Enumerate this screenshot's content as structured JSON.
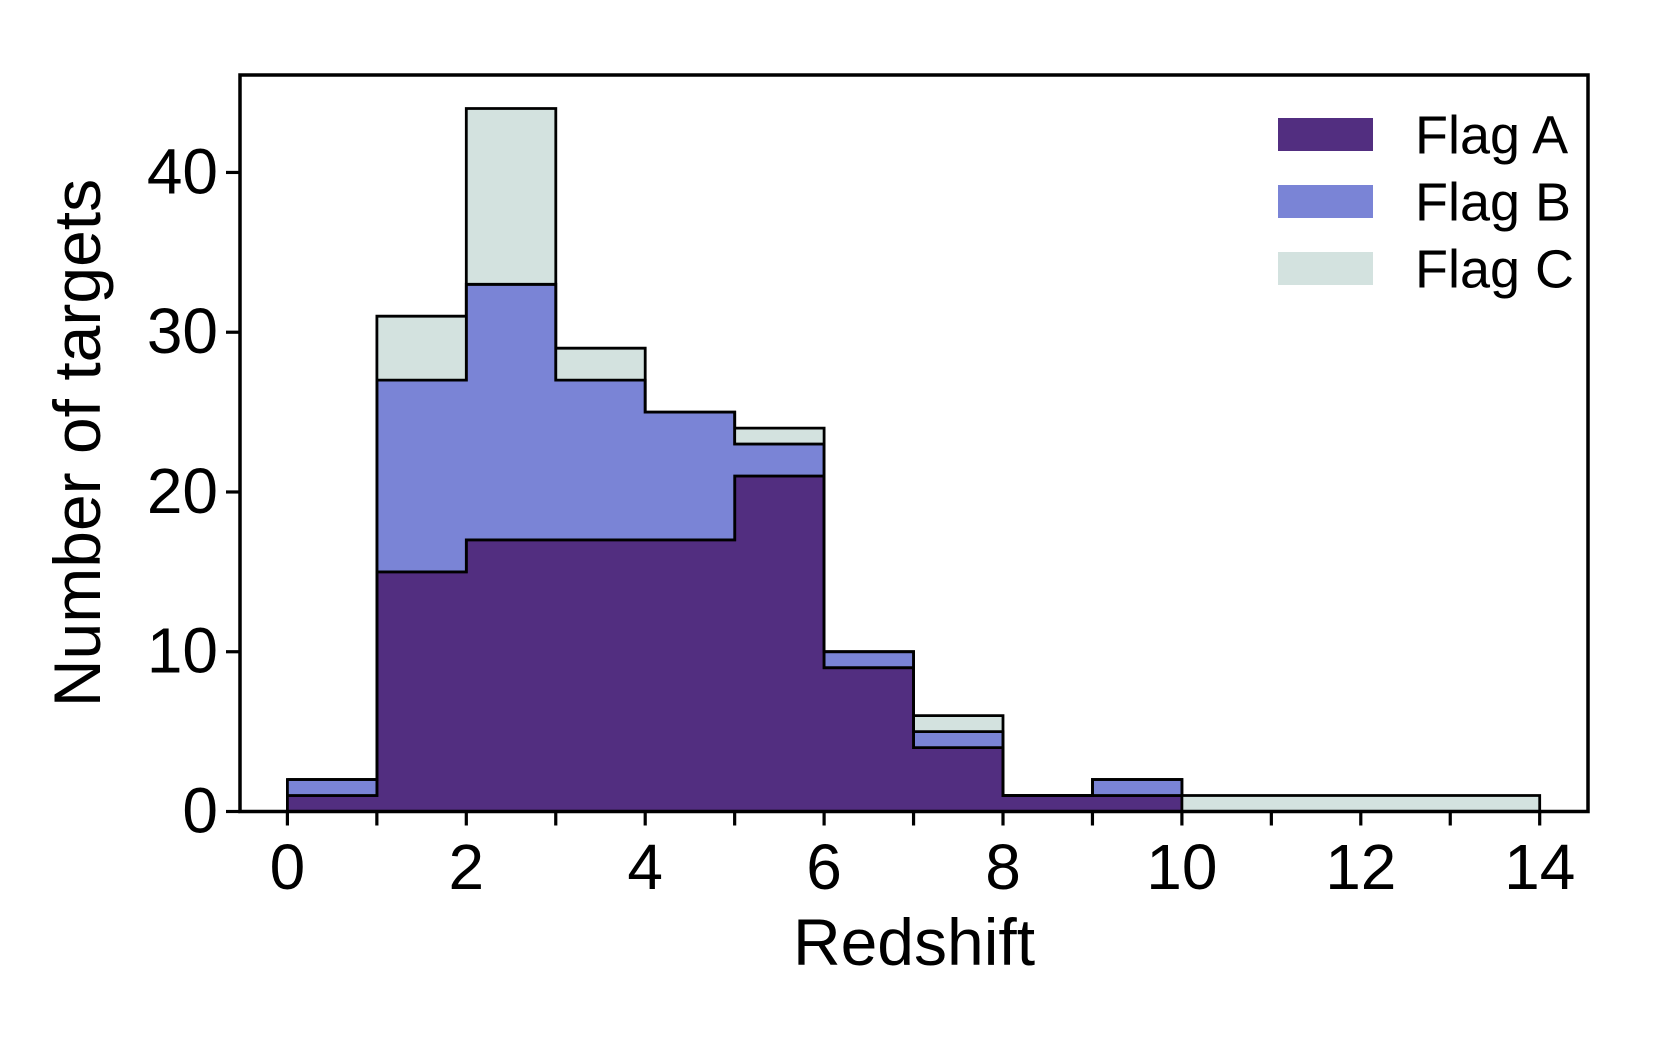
{
  "chart_data": {
    "type": "histogram-stacked-bar",
    "title": "",
    "xlabel": "Redshift",
    "ylabel": "Number of targets",
    "bin_edges": [
      0,
      1,
      2,
      3,
      4,
      5,
      6,
      7,
      8,
      9,
      10,
      14
    ],
    "series": [
      {
        "name": "Flag A",
        "color": "#522e80",
        "values": [
          1,
          15,
          17,
          17,
          17,
          21,
          9,
          4,
          1,
          1,
          0
        ]
      },
      {
        "name": "Flag B",
        "color": "#7a84d6",
        "values": [
          1,
          12,
          16,
          10,
          8,
          2,
          1,
          1,
          0,
          1,
          0
        ]
      },
      {
        "name": "Flag C",
        "color": "#d3e2df",
        "values": [
          0,
          4,
          11,
          2,
          0,
          1,
          0,
          1,
          0,
          0,
          1
        ]
      }
    ],
    "stacked_totals": [
      2,
      31,
      44,
      29,
      25,
      24,
      10,
      6,
      1,
      2,
      1
    ],
    "xlim": [
      -0.53,
      14.54
    ],
    "ylim": [
      0,
      46.1
    ],
    "x_major_ticks": [
      0,
      2,
      4,
      6,
      8,
      10,
      12,
      14
    ],
    "x_minor_ticks": [
      1,
      3,
      5,
      7,
      9,
      11,
      13
    ],
    "y_ticks": [
      0,
      10,
      20,
      30,
      40
    ],
    "grid": false,
    "legend_position": "upper right",
    "bar_edge_color": "#000000",
    "axis_color": "#000000"
  }
}
